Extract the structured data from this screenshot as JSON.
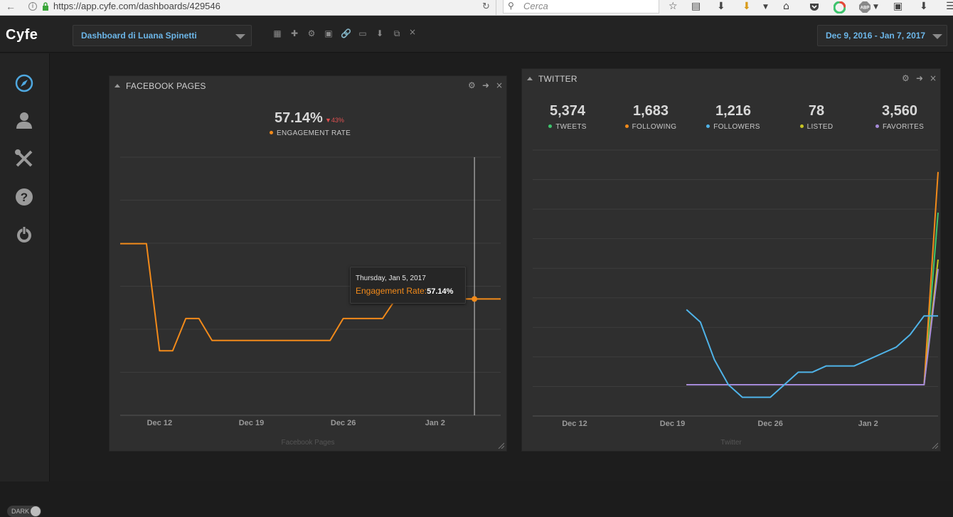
{
  "browser": {
    "url": "https://app.cyfe.com/dashboards/429546",
    "search_placeholder": "Cerca",
    "search_engine_badge": "ABP"
  },
  "app": {
    "logo": "Cyfe",
    "dashboard_select": "Dashboard di Luana Spinetti",
    "date_range": "Dec 9, 2016 - Jan 7, 2017",
    "toolbar_icons": [
      "grid-icon",
      "plus-icon",
      "gear-icon",
      "image-icon",
      "link-icon",
      "monitor-icon",
      "download-icon",
      "copy-icon",
      "close-icon"
    ]
  },
  "sidebar": {
    "items": [
      "compass-icon",
      "user-icon",
      "tools-icon",
      "help-icon",
      "power-icon"
    ],
    "toggle_label": "DARK"
  },
  "facebook_widget": {
    "title": "FACEBOOK PAGES",
    "metric_value": "57.14%",
    "metric_delta": "43%",
    "metric_label": "ENGAGEMENT RATE",
    "footer": "Facebook Pages",
    "tooltip": {
      "date": "Thursday, Jan 5, 2017",
      "label": "Engagement Rate:",
      "value": "57.14%"
    }
  },
  "twitter_widget": {
    "title": "TWITTER",
    "footer": "Twitter",
    "metrics": [
      {
        "value": "5,374",
        "label": "TWEETS",
        "color": "#3ec46d"
      },
      {
        "value": "1,683",
        "label": "FOLLOWING",
        "color": "#f28a1a"
      },
      {
        "value": "1,216",
        "label": "FOLLOWERS",
        "color": "#4fb3e8"
      },
      {
        "value": "78",
        "label": "LISTED",
        "color": "#c7c423"
      },
      {
        "value": "3,560",
        "label": "FAVORITES",
        "color": "#a58ad8"
      }
    ]
  },
  "colors": {
    "accent_blue": "#6cb6e8",
    "engagement_orange": "#f28a1a",
    "delta_red": "#e05050"
  },
  "chart_data": [
    {
      "type": "line",
      "title": "FACEBOOK PAGES",
      "x_ticks": [
        "Dec 12",
        "Dec 19",
        "Dec 26",
        "Jan 2"
      ],
      "x": [
        "Dec 9",
        "Dec 10",
        "Dec 11",
        "Dec 12",
        "Dec 13",
        "Dec 14",
        "Dec 15",
        "Dec 16",
        "Dec 17",
        "Dec 18",
        "Dec 19",
        "Dec 20",
        "Dec 21",
        "Dec 22",
        "Dec 23",
        "Dec 24",
        "Dec 25",
        "Dec 26",
        "Dec 27",
        "Dec 28",
        "Dec 29",
        "Dec 30",
        "Dec 31",
        "Jan 1",
        "Jan 2",
        "Jan 3",
        "Jan 4",
        "Jan 5",
        "Jan 6",
        "Jan 7"
      ],
      "series": [
        {
          "name": "Engagement Rate",
          "color": "#f28a1a",
          "values": [
            100,
            100,
            100,
            17,
            17,
            42,
            42,
            25,
            25,
            25,
            25,
            25,
            25,
            25,
            25,
            25,
            25,
            42,
            42,
            42,
            42,
            57.14,
            57.14,
            57.14,
            57.14,
            57.14,
            57.14,
            57.14,
            57.14,
            57.14
          ]
        }
      ],
      "ylim": [
        -33,
        167
      ],
      "highlight_index": 27
    },
    {
      "type": "line",
      "title": "TWITTER",
      "x_ticks": [
        "Dec 12",
        "Dec 19",
        "Dec 26",
        "Jan 2"
      ],
      "x": [
        "Dec 20",
        "Dec 21",
        "Dec 22",
        "Dec 23",
        "Dec 24",
        "Dec 25",
        "Dec 26",
        "Dec 27",
        "Dec 28",
        "Dec 29",
        "Dec 30",
        "Dec 31",
        "Jan 1",
        "Jan 2",
        "Jan 3",
        "Jan 4",
        "Jan 5",
        "Jan 6",
        "Jan 7"
      ],
      "series": [
        {
          "name": "FOLLOWERS",
          "color": "#4fb3e8",
          "values": [
            1184,
            1180,
            1168,
            1160,
            1156,
            1156,
            1156,
            1160,
            1164,
            1164,
            1166,
            1166,
            1166,
            1168,
            1170,
            1172,
            1176,
            1182,
            1182
          ]
        },
        {
          "name": "TWEETS",
          "color": "#3ec46d",
          "values": [
            1160,
            1160,
            1160,
            1160,
            1160,
            1160,
            1160,
            1160,
            1160,
            1160,
            1160,
            1160,
            1160,
            1160,
            1160,
            1160,
            1160,
            1160,
            1215
          ]
        },
        {
          "name": "FOLLOWING",
          "color": "#f28a1a",
          "values": [
            1160,
            1160,
            1160,
            1160,
            1160,
            1160,
            1160,
            1160,
            1160,
            1160,
            1160,
            1160,
            1160,
            1160,
            1160,
            1160,
            1160,
            1160,
            1228
          ]
        },
        {
          "name": "LISTED",
          "color": "#c7c423",
          "values": [
            1160,
            1160,
            1160,
            1160,
            1160,
            1160,
            1160,
            1160,
            1160,
            1160,
            1160,
            1160,
            1160,
            1160,
            1160,
            1160,
            1160,
            1160,
            1200
          ]
        },
        {
          "name": "FAVORITES",
          "color": "#a58ad8",
          "values": [
            1160,
            1160,
            1160,
            1160,
            1160,
            1160,
            1160,
            1160,
            1160,
            1160,
            1160,
            1160,
            1160,
            1160,
            1160,
            1160,
            1160,
            1160,
            1197
          ]
        }
      ],
      "ylim": [
        1150,
        1235
      ]
    }
  ]
}
